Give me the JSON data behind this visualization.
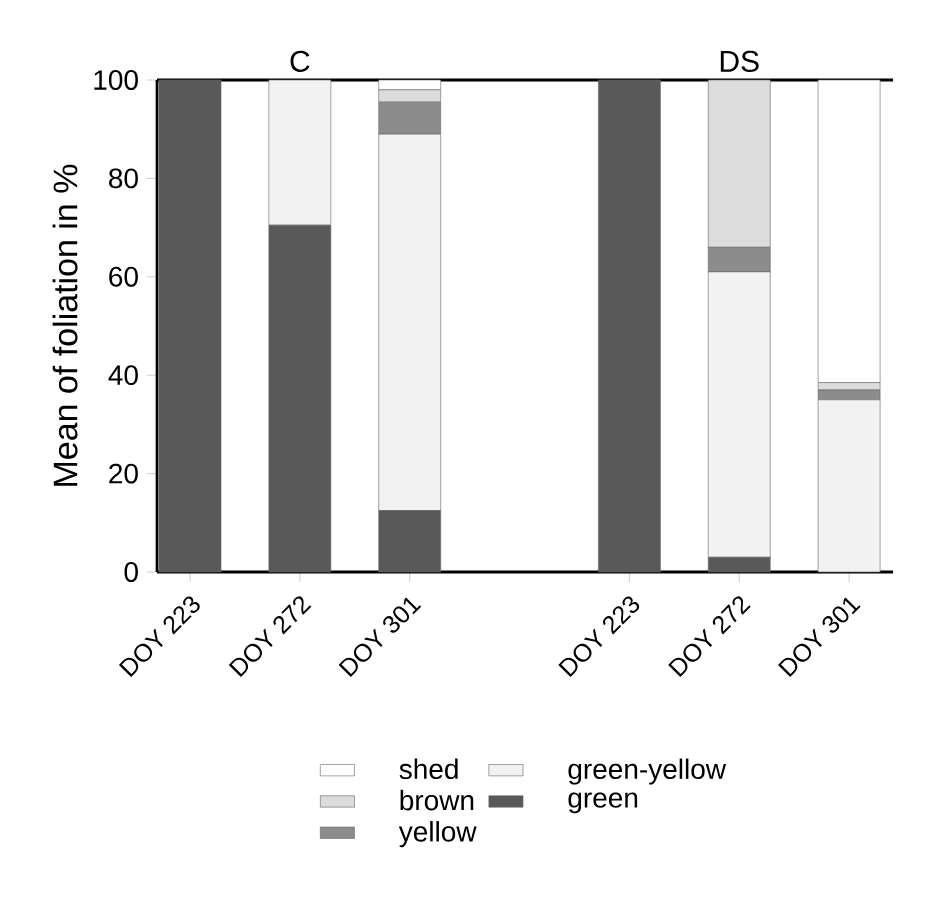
{
  "chart_data": {
    "type": "bar",
    "stacked": true,
    "annotations": [
      "C",
      "DS"
    ],
    "ylabel": "Mean of foliation in %",
    "categories": [
      "DOY 223",
      "DOY 272",
      "DOY 301",
      null,
      "DOY 223",
      "DOY 272",
      "DOY 301"
    ],
    "series": [
      {
        "name": "green",
        "color": "#595959",
        "values": [
          100,
          70.5,
          12.5,
          null,
          100,
          3,
          0
        ]
      },
      {
        "name": "green-yellow",
        "color": "#f2f2f2",
        "values": [
          0,
          29.5,
          76.5,
          null,
          0,
          58,
          35
        ]
      },
      {
        "name": "yellow",
        "color": "#8c8c8c",
        "values": [
          0,
          0,
          6.5,
          null,
          0,
          5,
          2
        ]
      },
      {
        "name": "brown",
        "color": "#dcdcdc",
        "values": [
          0,
          0,
          2.5,
          null,
          0,
          34,
          1.5
        ]
      },
      {
        "name": "shed",
        "color": "#ffffff",
        "values": [
          0,
          0,
          2,
          null,
          0,
          0,
          61.5
        ]
      }
    ],
    "ylim": [
      0,
      100
    ],
    "yticks": [
      0,
      20,
      40,
      60,
      80,
      100
    ],
    "legend": "bottom",
    "grid": false
  }
}
